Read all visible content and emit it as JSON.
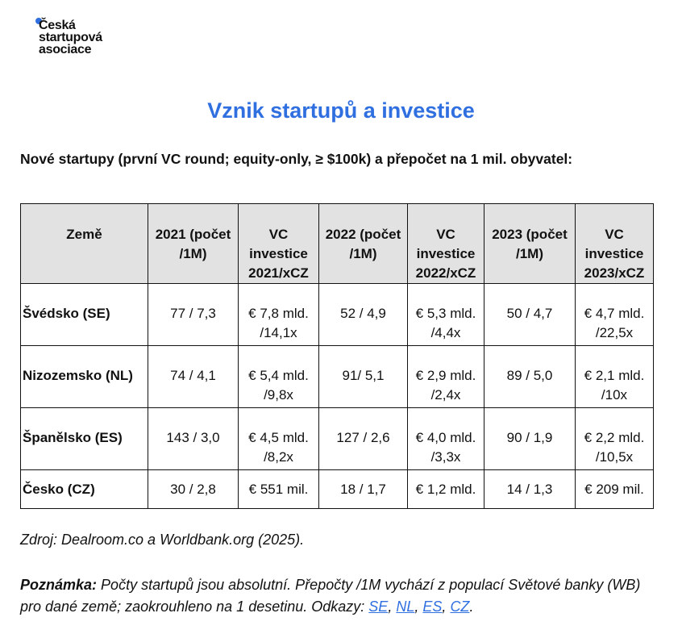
{
  "logo": {
    "lines": [
      "Česká",
      "startupová",
      "asociace"
    ]
  },
  "title": "Vznik startupů a investice",
  "subtitle": "Nové startupy (první VC round; equity-only, ≥ $100k) a přepočet na 1 mil. obyvatel:",
  "table": {
    "header": [
      "Země",
      "2021 (počet /1M)",
      "VC investice 2021/xCZ",
      "2022 (počet /1M)",
      "VC investice 2022/xCZ",
      "2023 (počet /1M)",
      "VC investice 2023/xCZ"
    ],
    "rows": [
      [
        "Švédsko (SE)",
        "77 / 7,3",
        "€ 7,8 mld. /14,1x",
        "52 / 4,9",
        "€ 5,3 mld. /4,4x",
        "50 / 4,7",
        "€ 4,7 mld. /22,5x"
      ],
      [
        "Nizozemsko (NL)",
        "74 / 4,1",
        "€ 5,4 mld. /9,8x",
        "91/ 5,1",
        "€ 2,9 mld. /2,4x",
        "89 / 5,0",
        "€ 2,1 mld. /10x"
      ],
      [
        "Španělsko (ES)",
        "143 / 3,0",
        "€ 4,5 mld. /8,2x",
        "127 / 2,6",
        "€ 4,0 mld. /3,3x",
        "90 / 1,9",
        "€ 2,2 mld. /10,5x"
      ],
      [
        "Česko (CZ)",
        "30 / 2,8",
        "€ 551 mil.",
        "18 / 1,7",
        "€ 1,2 mld.",
        "14 / 1,3",
        "€ 209 mil."
      ]
    ]
  },
  "source": "Zdroj: Dealroom.co a Worldbank.org (2025).",
  "note": {
    "label": "Poznámka:",
    "text": "Počty startupů jsou absolutní. Přepočty /1M vychází z populací Světové banky (WB) pro dané země; zaokrouhleno na 1 desetinu. Odkazy:",
    "links": [
      "SE",
      "NL",
      "ES",
      "CZ"
    ],
    "separator": ",",
    "end": "."
  }
}
